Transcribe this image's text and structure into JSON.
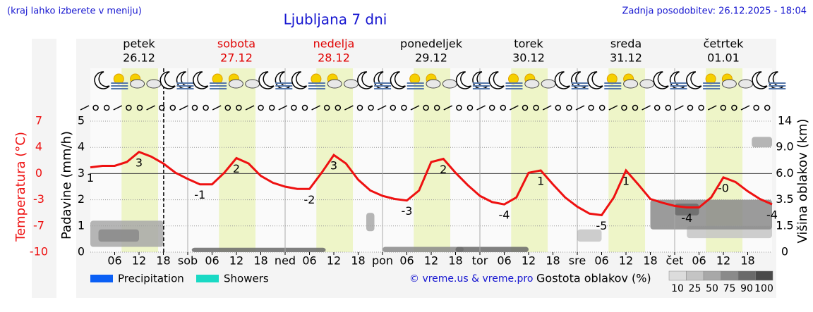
{
  "chart_data": {
    "type": "meteogram",
    "subtitle": "(kraj lahko izberete v meniju)",
    "title": "Ljubljana 7 dni",
    "updated": "Zadnja posodobitev: 26.12.2025 - 18:04",
    "days": [
      {
        "name": "petek",
        "date": "26.12",
        "color": "#000000"
      },
      {
        "name": "sobota",
        "date": "27.12",
        "color": "#e00000"
      },
      {
        "name": "nedelja",
        "date": "28.12",
        "color": "#e00000"
      },
      {
        "name": "ponedeljek",
        "date": "29.12",
        "color": "#000000"
      },
      {
        "name": "torek",
        "date": "30.12",
        "color": "#000000"
      },
      {
        "name": "sreda",
        "date": "31.12",
        "color": "#000000"
      },
      {
        "name": "četrtek",
        "date": "01.01",
        "color": "#000000"
      }
    ],
    "xlim": [
      0,
      168
    ],
    "xticks": [
      {
        "value": 6,
        "label": "06"
      },
      12,
      18,
      {
        "value": 24,
        "label": "sob"
      },
      {
        "value": 30,
        "label": "06"
      },
      {
        "value": 36,
        "label": "12"
      },
      {
        "value": 42,
        "label": "18"
      },
      {
        "value": 48,
        "label": "ned"
      },
      {
        "value": 54,
        "label": "06"
      },
      {
        "value": 60,
        "label": "12"
      },
      {
        "value": 66,
        "label": "18"
      },
      {
        "value": 72,
        "label": "pon"
      },
      {
        "value": 78,
        "label": "06"
      },
      {
        "value": 84,
        "label": "12"
      },
      {
        "value": 90,
        "label": "18"
      },
      {
        "value": 96,
        "label": "tor"
      },
      {
        "value": 102,
        "label": "06"
      },
      {
        "value": 108,
        "label": "12"
      },
      {
        "value": 114,
        "label": "18"
      },
      {
        "value": 120,
        "label": "sre"
      },
      {
        "value": 126,
        "label": "06"
      },
      {
        "value": 132,
        "label": "12"
      },
      {
        "value": 138,
        "label": "18"
      },
      {
        "value": 144,
        "label": "čet"
      },
      {
        "value": 150,
        "label": "06"
      },
      {
        "value": 156,
        "label": "12"
      },
      {
        "value": 162,
        "label": "18"
      }
    ],
    "now": 18.07,
    "daylight": [
      7.7,
      16.7
    ],
    "ylabel": "Padavine (mm/h)",
    "ylim": [
      0,
      5
    ],
    "yticks": [
      0,
      1,
      2,
      3,
      4,
      5
    ],
    "y2label": "Temperatura (°C)",
    "y2lim": [
      -10,
      7
    ],
    "y2ticks": [
      -10,
      {
        "value": -6.6,
        "label": "-7"
      },
      {
        "value": -3.2,
        "label": "-3"
      },
      {
        "value": 0.2,
        "label": "0"
      },
      {
        "value": 3.6,
        "label": "4"
      },
      7
    ],
    "y3label": "Višina oblakov (km)",
    "y3ticks": [
      0,
      1.5,
      3.5,
      {
        "value": 6,
        "label": "6.0"
      },
      {
        "value": 9,
        "label": "9.0"
      },
      14
    ],
    "grid": true,
    "x": [
      0,
      3,
      6,
      9,
      12,
      15,
      18,
      21,
      24,
      27,
      30,
      33,
      36,
      39,
      42,
      45,
      48,
      51,
      54,
      57,
      60,
      63,
      66,
      69,
      72,
      75,
      78,
      81,
      84,
      87,
      90,
      93,
      96,
      99,
      102,
      105,
      108,
      111,
      114,
      117,
      120,
      123,
      126,
      129,
      132,
      135,
      138,
      141,
      144,
      147,
      150,
      153,
      156,
      159,
      162,
      165,
      168
    ],
    "series": [
      {
        "axis": "y2",
        "color": "#ee1111",
        "values": [
          1.0,
          1.2,
          1.2,
          1.7,
          3.0,
          2.4,
          1.5,
          0.3,
          -0.5,
          -1.2,
          -1.2,
          0.3,
          2.2,
          1.5,
          -0.1,
          -1.0,
          -1.5,
          -1.8,
          -1.8,
          0.3,
          2.6,
          1.5,
          -0.6,
          -2.0,
          -2.7,
          -3.1,
          -3.3,
          -2.0,
          1.7,
          2.1,
          0.3,
          -1.3,
          -2.7,
          -3.5,
          -3.8,
          -2.9,
          0.3,
          0.6,
          -1.2,
          -2.9,
          -4.1,
          -5.0,
          -5.2,
          -2.9,
          0.6,
          -1.2,
          -3.1,
          -3.6,
          -4.0,
          -4.2,
          -4.2,
          -2.9,
          -0.3,
          -0.9,
          -2.1,
          -3.1,
          -3.8
        ],
        "value_labels": [
          "1",
          null,
          null,
          null,
          "3",
          null,
          null,
          null,
          null,
          "-1",
          null,
          null,
          "2",
          null,
          null,
          null,
          null,
          null,
          "-2",
          null,
          "3",
          null,
          null,
          null,
          null,
          null,
          "-3",
          null,
          null,
          "2",
          null,
          null,
          null,
          null,
          "-4",
          null,
          null,
          "1",
          null,
          null,
          null,
          null,
          "-5",
          null,
          "1",
          null,
          null,
          null,
          null,
          "-4",
          null,
          null,
          "-0",
          null,
          null,
          null,
          "-4"
        ]
      }
    ],
    "clouds": [
      {
        "x": [
          0,
          18
        ],
        "km": [
          0.3,
          1.9
        ],
        "density": 50
      },
      {
        "x": [
          2,
          12
        ],
        "km": [
          0.6,
          1.3
        ],
        "density": 75
      },
      {
        "x": [
          25,
          58
        ],
        "km": [
          0,
          0.25
        ],
        "density": 90
      },
      {
        "x": [
          68,
          70
        ],
        "km": [
          1.2,
          2.5
        ],
        "density": 50
      },
      {
        "x": [
          72,
          92
        ],
        "km": [
          0,
          0.3
        ],
        "density": 75
      },
      {
        "x": [
          90,
          108
        ],
        "km": [
          0,
          0.3
        ],
        "density": 90
      },
      {
        "x": [
          120,
          126
        ],
        "km": [
          0.6,
          1.3
        ],
        "density": 25
      },
      {
        "x": [
          147,
          168
        ],
        "km": [
          0.8,
          1.5
        ],
        "density": 25
      },
      {
        "x": [
          138,
          168
        ],
        "km": [
          1.3,
          3.5
        ],
        "density": 75
      },
      {
        "x": [
          144,
          150
        ],
        "km": [
          2.3,
          3.2
        ],
        "density": 90
      },
      {
        "x": [
          163,
          168
        ],
        "km": [
          9,
          11
        ],
        "density": 50
      }
    ],
    "legend": [
      {
        "name": "Precipitation",
        "color": "#0a5ff5"
      },
      {
        "name": "Showers",
        "color": "#19d9c4"
      }
    ],
    "credit": "© vreme.us & vreme.pro",
    "density_title": "Gostota oblakov (%)",
    "density_scale": {
      "values": [
        10,
        25,
        50,
        75,
        90,
        100
      ],
      "colors": [
        "#dcdcdc",
        "#c4c4c4",
        "#a8a8a8",
        "#8a8a8a",
        "#6a6a6a",
        "#4a4a4a"
      ]
    }
  }
}
